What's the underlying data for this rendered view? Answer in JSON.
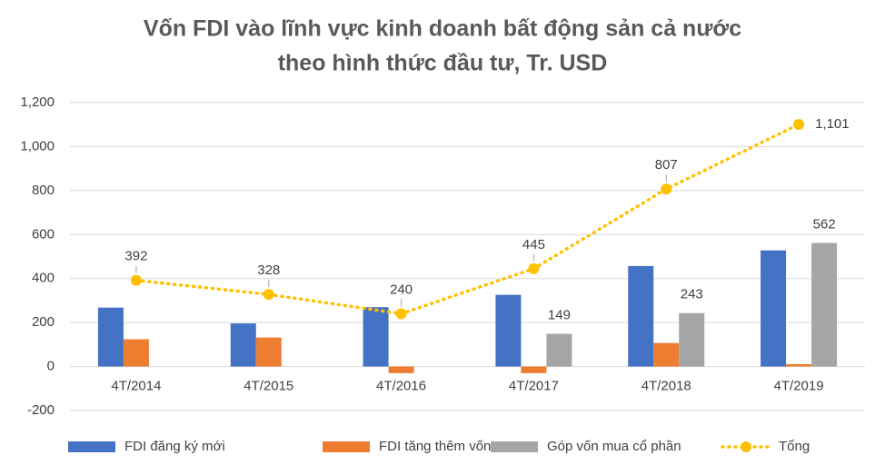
{
  "chart_data": {
    "type": "bar",
    "title": [
      "Vốn FDI vào lĩnh vực kinh doanh bất động sản cả nước",
      "theo hình thức đầu tư, Tr. USD"
    ],
    "categories": [
      "4T/2014",
      "4T/2015",
      "4T/2016",
      "4T/2017",
      "4T/2018",
      "4T/2019"
    ],
    "series": [
      {
        "name": "FDI đăng ký mới",
        "color": "#4472c4",
        "values": [
          268,
          196,
          270,
          326,
          457,
          528
        ]
      },
      {
        "name": "FDI tăng thêm vốn",
        "color": "#ed7d31",
        "values": [
          124,
          132,
          -30,
          -30,
          107,
          11
        ]
      },
      {
        "name": "Góp vốn mua cổ phần",
        "color": "#a5a5a5",
        "values": [
          null,
          null,
          null,
          149,
          243,
          562
        ],
        "show_labels": true
      },
      {
        "name": "Tổng",
        "color": "#ffc000",
        "type": "line",
        "values": [
          392,
          328,
          240,
          445,
          807,
          1101
        ],
        "value_labels": [
          "392",
          "328",
          "240",
          "445",
          "807",
          "1,101"
        ]
      }
    ],
    "ylim": [
      -200,
      1200
    ],
    "yticks": [
      -200,
      0,
      200,
      400,
      600,
      800,
      {
        "value": 1000,
        "label": "1,000"
      },
      {
        "value": 1200,
        "label": "1,200"
      }
    ],
    "grid": true,
    "legend": "bottom"
  }
}
